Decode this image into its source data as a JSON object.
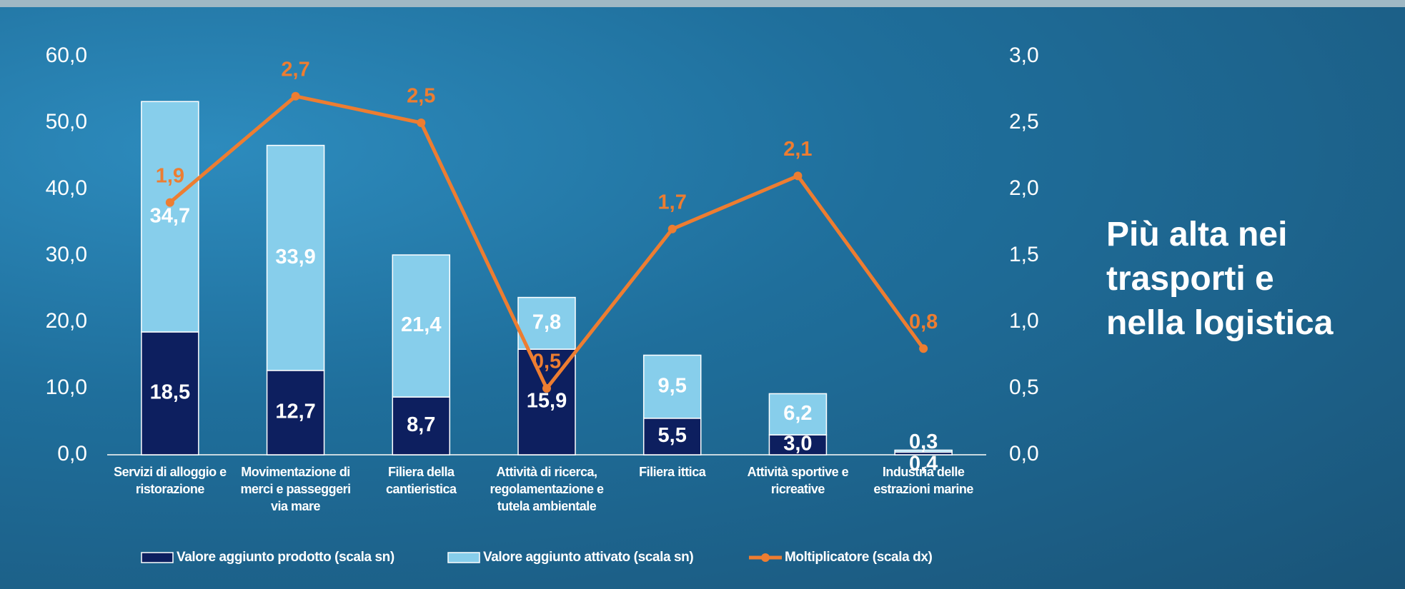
{
  "chart_data": {
    "type": "bar",
    "stacked": true,
    "categories": [
      "Servizi di alloggio e ristorazione",
      "Movimentazione di merci e passeggeri via mare",
      "Filiera della cantieristica",
      "Attività di ricerca, regolamentazione e tutela ambientale",
      "Filiera ittica",
      "Attività sportive e ricreative",
      "Industria delle estrazioni marine"
    ],
    "series": [
      {
        "name": "Valore aggiunto prodotto (scala sn)",
        "type": "bar",
        "color": "#0d1f5f",
        "values": [
          18.5,
          12.7,
          8.7,
          15.9,
          5.5,
          3.0,
          0.4
        ],
        "value_labels": [
          "18,5",
          "12,7",
          "8,7",
          "15,9",
          "5,5",
          "3,0",
          "0,4"
        ]
      },
      {
        "name": "Valore aggiunto attivato (scala sn)",
        "type": "bar",
        "color": "#87ceeb",
        "values": [
          34.7,
          33.9,
          21.4,
          7.8,
          9.5,
          6.2,
          0.3
        ],
        "value_labels": [
          "34,7",
          "33,9",
          "21,4",
          "7,8",
          "9,5",
          "6,2",
          "0,3"
        ]
      },
      {
        "name": "Moltiplicatore (scala dx)",
        "type": "line",
        "axis": "y2",
        "color": "#ed7d31",
        "values": [
          1.9,
          2.7,
          2.5,
          0.5,
          1.7,
          2.1,
          0.8
        ],
        "value_labels": [
          "1,9",
          "2,7",
          "2,5",
          "0,5",
          "1,7",
          "2,1",
          "0,8"
        ]
      }
    ],
    "ylim": [
      0,
      60
    ],
    "yticks": [
      {
        "value": 0,
        "label": "0,0"
      },
      {
        "value": 10,
        "label": "10,0"
      },
      {
        "value": 20,
        "label": "20,0"
      },
      {
        "value": 30,
        "label": "30,0"
      },
      {
        "value": 40,
        "label": "40,0"
      },
      {
        "value": 50,
        "label": "50,0"
      },
      {
        "value": 60,
        "label": "60,0"
      }
    ],
    "y2lim": [
      0,
      3
    ],
    "y2ticks": [
      {
        "value": 0,
        "label": "0,0"
      },
      {
        "value": 0.5,
        "label": "0,5"
      },
      {
        "value": 1,
        "label": "1,0"
      },
      {
        "value": 1.5,
        "label": "1,5"
      },
      {
        "value": 2,
        "label": "2,0"
      },
      {
        "value": 2.5,
        "label": "2,5"
      },
      {
        "value": 3,
        "label": "3,0"
      }
    ],
    "grid": false,
    "annotation": "Più alta nei trasporti e nella logistica"
  }
}
